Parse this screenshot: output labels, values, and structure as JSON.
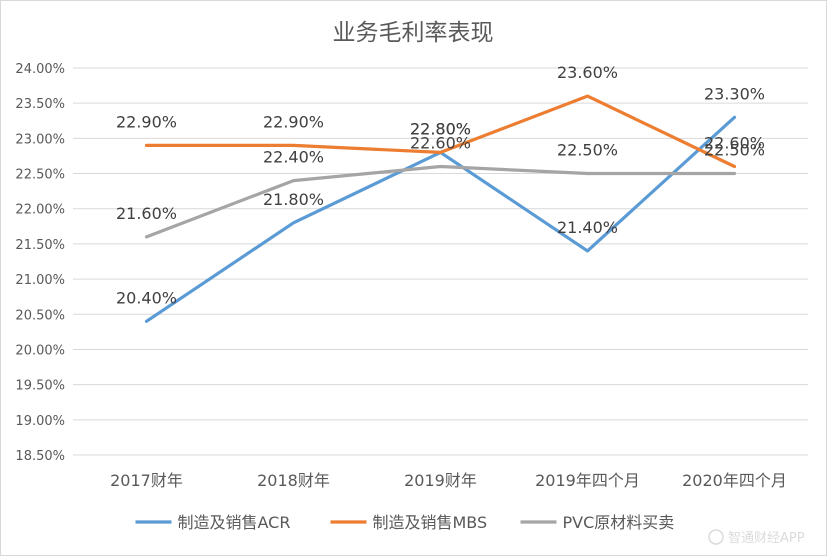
{
  "chart_data": {
    "type": "line",
    "title": "业务毛利率表现",
    "categories": [
      "2017财年",
      "2018财年",
      "2019财年",
      "2019年四个月",
      "2020年四个月"
    ],
    "series": [
      {
        "name": "制造及销售ACR",
        "color": "#5b9bd5",
        "values": [
          20.4,
          21.8,
          22.8,
          21.4,
          23.3
        ],
        "labels": [
          "20.40%",
          "21.80%",
          "22.80%",
          "21.40%",
          "23.30%"
        ]
      },
      {
        "name": "制造及销售MBS",
        "color": "#ed7d31",
        "values": [
          22.9,
          22.9,
          22.8,
          23.6,
          22.6
        ],
        "labels": [
          "22.90%",
          "22.90%",
          "22.80%",
          "23.60%",
          "22.60%"
        ]
      },
      {
        "name": "PVC原材料买卖",
        "color": "#a5a5a5",
        "values": [
          21.6,
          22.4,
          22.6,
          22.5,
          22.5
        ],
        "labels": [
          "21.60%",
          "22.40%",
          "22.60%",
          "22.50%",
          "22.50%"
        ]
      }
    ],
    "y_ticks": [
      "18.50%",
      "19.00%",
      "19.50%",
      "20.00%",
      "20.50%",
      "21.00%",
      "21.50%",
      "22.00%",
      "22.50%",
      "23.00%",
      "23.50%",
      "24.00%"
    ],
    "ylim": [
      18.5,
      24.0
    ],
    "ystep": 0.5,
    "grid": true,
    "legend": "bottom",
    "watermark": "智通财经APP"
  }
}
